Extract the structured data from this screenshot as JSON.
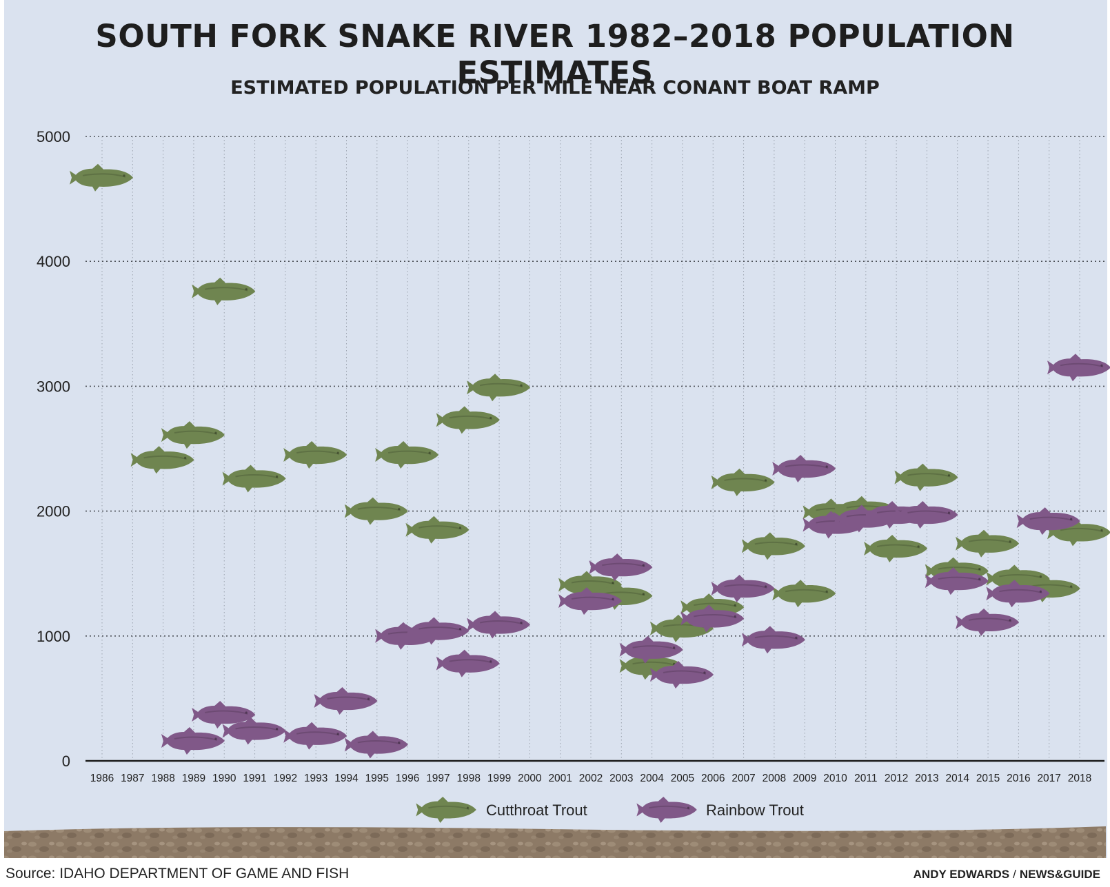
{
  "title": "SOUTH FORK SNAKE RIVER 1982–2018 POPULATION ESTIMATES",
  "subtitle": "ESTIMATED POPULATION PER MILE NEAR CONANT BOAT RAMP",
  "source": "Source: IDAHO DEPARTMENT OF GAME AND FISH",
  "credit": {
    "author": "ANDY EDWARDS",
    "separator": "/",
    "outlet": "NEWS&GUIDE"
  },
  "chart_data": {
    "type": "scatter",
    "title": "SOUTH FORK SNAKE RIVER 1982–2018 POPULATION ESTIMATES",
    "subtitle": "ESTIMATED POPULATION PER MILE NEAR CONANT BOAT RAMP",
    "xlabel": "",
    "ylabel": "",
    "xlim": [
      1986,
      2018
    ],
    "ylim": [
      0,
      5000
    ],
    "yticks": [
      0,
      1000,
      2000,
      3000,
      4000,
      5000
    ],
    "xticks": [
      1986,
      1987,
      1988,
      1989,
      1990,
      1991,
      1992,
      1993,
      1994,
      1995,
      1996,
      1997,
      1998,
      1999,
      2000,
      2001,
      2002,
      2003,
      2004,
      2005,
      2006,
      2007,
      2008,
      2009,
      2010,
      2011,
      2012,
      2013,
      2014,
      2015,
      2016,
      2017,
      2018
    ],
    "grid": true,
    "legend": "bottom-center",
    "marker": "fish-icon",
    "series": [
      {
        "name": "Cutthroat Trout",
        "color": "#6f8550",
        "points": [
          [
            1986,
            4670
          ],
          [
            1988,
            2410
          ],
          [
            1989,
            2610
          ],
          [
            1990,
            3760
          ],
          [
            1991,
            2260
          ],
          [
            1993,
            2450
          ],
          [
            1995,
            2000
          ],
          [
            1996,
            2450
          ],
          [
            1997,
            1850
          ],
          [
            1998,
            2730
          ],
          [
            1999,
            2990
          ],
          [
            2002,
            1410
          ],
          [
            2003,
            1320
          ],
          [
            2004,
            760
          ],
          [
            2005,
            1060
          ],
          [
            2006,
            1230
          ],
          [
            2007,
            2230
          ],
          [
            2008,
            1720
          ],
          [
            2009,
            1340
          ],
          [
            2010,
            1990
          ],
          [
            2011,
            2010
          ],
          [
            2012,
            1700
          ],
          [
            2013,
            2270
          ],
          [
            2014,
            1520
          ],
          [
            2015,
            1740
          ],
          [
            2016,
            1460
          ],
          [
            2017,
            1380
          ],
          [
            2018,
            1830
          ]
        ]
      },
      {
        "name": "Rainbow Trout",
        "color": "#805888",
        "points": [
          [
            1989,
            160
          ],
          [
            1990,
            370
          ],
          [
            1991,
            240
          ],
          [
            1993,
            200
          ],
          [
            1994,
            480
          ],
          [
            1995,
            130
          ],
          [
            1996,
            1000
          ],
          [
            1997,
            1040
          ],
          [
            1998,
            780
          ],
          [
            1999,
            1090
          ],
          [
            2002,
            1280
          ],
          [
            2003,
            1550
          ],
          [
            2004,
            890
          ],
          [
            2005,
            690
          ],
          [
            2006,
            1140
          ],
          [
            2007,
            1380
          ],
          [
            2008,
            970
          ],
          [
            2009,
            2340
          ],
          [
            2010,
            1890
          ],
          [
            2011,
            1940
          ],
          [
            2012,
            1970
          ],
          [
            2013,
            1970
          ],
          [
            2014,
            1440
          ],
          [
            2015,
            1110
          ],
          [
            2016,
            1340
          ],
          [
            2017,
            1920
          ],
          [
            2018,
            3150
          ]
        ]
      }
    ]
  }
}
